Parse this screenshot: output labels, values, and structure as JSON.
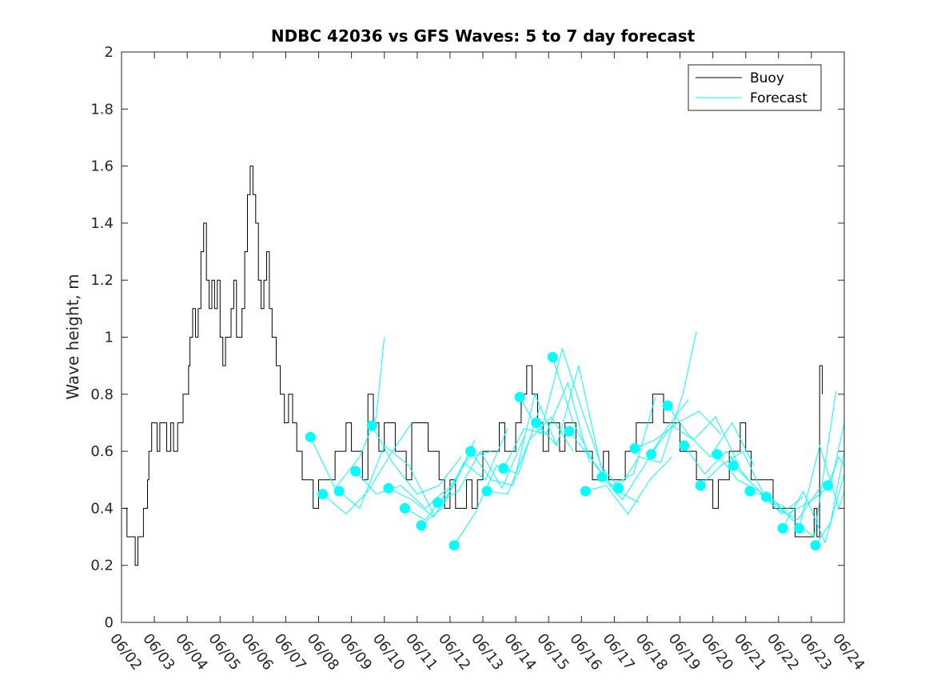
{
  "chart_data": {
    "type": "line",
    "title": "NDBC 42036 vs GFS Waves: 5 to 7 day forecast",
    "ylabel": "Wave height, m",
    "xlabel": "",
    "x_start": "06/02",
    "x_ticks": [
      "06/02",
      "06/03",
      "06/04",
      "06/05",
      "06/06",
      "06/07",
      "06/08",
      "06/09",
      "06/10",
      "06/11",
      "06/12",
      "06/13",
      "06/14",
      "06/15",
      "06/16",
      "06/17",
      "06/18",
      "06/19",
      "06/20",
      "06/21",
      "06/22",
      "06/23",
      "06/24"
    ],
    "xlim": [
      "06/02",
      "06/24"
    ],
    "ylim": [
      0,
      2
    ],
    "y_ticks": [
      "0",
      "0.2",
      "0.4",
      "0.6",
      "0.8",
      "1",
      "1.2",
      "1.4",
      "1.6",
      "1.8",
      "2"
    ],
    "legend": {
      "position": "top-right",
      "entries": [
        "Buoy",
        "Forecast"
      ]
    },
    "colors": {
      "buoy": "#000000",
      "forecast": "#00ffff",
      "axes": "#262626"
    },
    "series": [
      {
        "name": "Buoy",
        "x": [
          "06/02 02:00",
          "06/02 04:00",
          "06/02 07:00",
          "06/02 09:00",
          "06/02 10:00",
          "06/02 11:00",
          "06/02 12:00",
          "06/02 14:00",
          "06/02 16:00",
          "06/02 17:00",
          "06/02 19:00",
          "06/02 20:00",
          "06/02 22:00",
          "06/03 01:00",
          "06/03 02:00",
          "06/03 04:00",
          "06/03 07:00",
          "06/03 09:00",
          "06/03 12:00",
          "06/03 14:00",
          "06/03 17:00",
          "06/03 19:00",
          "06/03 21:00",
          "06/03 23:00",
          "06/04 01:00",
          "06/04 02:00",
          "06/04 04:00",
          "06/04 06:00",
          "06/04 08:00",
          "06/04 10:00",
          "06/04 12:00",
          "06/04 14:00",
          "06/04 16:00",
          "06/04 18:00",
          "06/04 20:00",
          "06/04 22:00",
          "06/05 00:00",
          "06/05 02:00",
          "06/05 04:00",
          "06/05 06:00",
          "06/05 08:00",
          "06/05 10:00",
          "06/05 12:00",
          "06/05 14:00",
          "06/05 16:00",
          "06/05 18:00",
          "06/05 20:00",
          "06/05 22:00",
          "06/06 00:00",
          "06/06 02:00",
          "06/06 04:00",
          "06/06 06:00",
          "06/06 08:00",
          "06/06 10:00",
          "06/06 12:00",
          "06/06 14:00",
          "06/06 17:00",
          "06/06 20:00",
          "06/06 23:00",
          "06/07 02:00",
          "06/07 05:00",
          "06/07 08:00",
          "06/07 12:00",
          "06/07 16:00",
          "06/07 20:00",
          "06/08 00:00",
          "06/08 04:00",
          "06/08 08:00",
          "06/08 12:00",
          "06/08 16:00",
          "06/08 20:00",
          "06/09 00:00",
          "06/09 04:00",
          "06/09 08:00",
          "06/09 12:00",
          "06/09 16:00",
          "06/09 20:00",
          "06/10 00:00",
          "06/10 04:00",
          "06/10 08:00",
          "06/10 12:00",
          "06/10 16:00",
          "06/10 20:00",
          "06/11 00:00",
          "06/11 04:00",
          "06/11 08:00",
          "06/11 12:00",
          "06/11 16:00",
          "06/11 20:00",
          "06/12 00:00",
          "06/12 04:00",
          "06/12 08:00",
          "06/12 12:00",
          "06/12 16:00",
          "06/12 20:00",
          "06/13 00:00",
          "06/13 04:00",
          "06/13 08:00",
          "06/13 12:00",
          "06/13 16:00",
          "06/13 20:00",
          "06/14 00:00",
          "06/14 04:00",
          "06/14 08:00",
          "06/14 12:00",
          "06/14 16:00",
          "06/14 20:00",
          "06/15 00:00",
          "06/15 04:00",
          "06/15 08:00",
          "06/15 12:00",
          "06/15 16:00",
          "06/15 20:00",
          "06/16 00:00",
          "06/16 04:00",
          "06/16 08:00",
          "06/16 12:00",
          "06/16 16:00",
          "06/16 20:00",
          "06/17 00:00",
          "06/17 04:00",
          "06/17 08:00",
          "06/17 12:00",
          "06/17 16:00",
          "06/17 20:00",
          "06/18 00:00",
          "06/18 04:00",
          "06/18 08:00",
          "06/18 12:00",
          "06/18 16:00",
          "06/18 20:00",
          "06/19 00:00",
          "06/19 04:00",
          "06/19 08:00",
          "06/19 12:00",
          "06/19 16:00",
          "06/19 20:00",
          "06/20 00:00",
          "06/20 04:00",
          "06/20 08:00",
          "06/20 12:00",
          "06/20 16:00",
          "06/20 20:00",
          "06/21 00:00",
          "06/21 04:00",
          "06/21 08:00",
          "06/21 12:00",
          "06/21 16:00",
          "06/21 20:00",
          "06/22 00:00",
          "06/22 04:00",
          "06/22 08:00",
          "06/22 12:00",
          "06/22 16:00",
          "06/22 20:00",
          "06/23 00:00",
          "06/23 02:00",
          "06/23 04:00",
          "06/23 06:00",
          "06/23 08:00"
        ],
        "y": [
          0.4,
          0.3,
          0.3,
          0.3,
          0.2,
          0.2,
          0.3,
          0.3,
          0.4,
          0.4,
          0.5,
          0.6,
          0.7,
          0.7,
          0.6,
          0.7,
          0.7,
          0.6,
          0.7,
          0.6,
          0.7,
          0.7,
          0.8,
          0.8,
          0.9,
          1.0,
          1.1,
          1.0,
          1.1,
          1.3,
          1.4,
          1.2,
          1.1,
          1.2,
          1.1,
          1.2,
          1.0,
          0.9,
          1.0,
          1.0,
          1.1,
          1.2,
          1.0,
          1.0,
          1.1,
          1.3,
          1.5,
          1.6,
          1.5,
          1.4,
          1.2,
          1.1,
          1.2,
          1.3,
          1.1,
          1.0,
          0.9,
          0.8,
          0.7,
          0.8,
          0.7,
          0.6,
          0.5,
          0.5,
          0.4,
          0.5,
          0.5,
          0.5,
          0.6,
          0.6,
          0.7,
          0.6,
          0.6,
          0.5,
          0.8,
          0.7,
          0.6,
          0.7,
          0.7,
          0.6,
          0.6,
          0.5,
          0.7,
          0.7,
          0.7,
          0.6,
          0.6,
          0.5,
          0.4,
          0.5,
          0.4,
          0.4,
          0.5,
          0.4,
          0.5,
          0.6,
          0.6,
          0.6,
          0.7,
          0.6,
          0.6,
          0.7,
          0.8,
          0.9,
          0.8,
          0.7,
          0.6,
          0.7,
          0.7,
          0.6,
          0.7,
          0.7,
          0.6,
          0.6,
          0.6,
          0.5,
          0.5,
          0.6,
          0.5,
          0.5,
          0.5,
          0.6,
          0.6,
          0.7,
          0.7,
          0.7,
          0.8,
          0.8,
          0.7,
          0.7,
          0.7,
          0.6,
          0.6,
          0.6,
          0.5,
          0.5,
          0.5,
          0.4,
          0.5,
          0.5,
          0.6,
          0.6,
          0.7,
          0.6,
          0.5,
          0.5,
          0.5,
          0.5,
          0.4,
          0.4,
          0.4,
          0.4,
          0.3,
          0.3,
          0.3,
          0.3,
          0.4,
          0.3,
          0.9,
          0.8
        ]
      },
      {
        "name": "Forecast",
        "markers": {
          "x": [
            "06/07 18:00",
            "06/08 03:00",
            "06/08 15:00",
            "06/09 03:00",
            "06/09 15:00",
            "06/10 03:00",
            "06/10 15:00",
            "06/11 03:00",
            "06/11 15:00",
            "06/12 03:00",
            "06/12 15:00",
            "06/13 03:00",
            "06/13 15:00",
            "06/14 03:00",
            "06/14 15:00",
            "06/15 03:00",
            "06/15 15:00",
            "06/16 03:00",
            "06/16 15:00",
            "06/17 03:00",
            "06/17 15:00",
            "06/18 03:00",
            "06/18 15:00",
            "06/19 03:00",
            "06/19 15:00",
            "06/20 03:00",
            "06/20 15:00",
            "06/21 03:00",
            "06/21 15:00",
            "06/22 03:00",
            "06/22 15:00",
            "06/23 03:00",
            "06/23 12:00"
          ],
          "y": [
            0.65,
            0.45,
            0.46,
            0.53,
            0.69,
            0.47,
            0.4,
            0.34,
            0.42,
            0.27,
            0.6,
            0.46,
            0.54,
            0.79,
            0.7,
            0.93,
            0.67,
            0.46,
            0.51,
            0.47,
            0.61,
            0.59,
            0.76,
            0.62,
            0.48,
            0.59,
            0.55,
            0.46,
            0.44,
            0.33,
            0.33,
            0.27,
            0.48
          ]
        },
        "runs": [
          {
            "x": [
              "06/07 18:00",
              "06/08 12:00",
              "06/09 06:00",
              "06/09 18:00",
              "06/10 00:00"
            ],
            "y": [
              0.65,
              0.47,
              0.58,
              0.72,
              1.0
            ]
          },
          {
            "x": [
              "06/08 03:00",
              "06/08 20:00",
              "06/09 12:00",
              "06/10 06:00",
              "06/10 20:00"
            ],
            "y": [
              0.45,
              0.38,
              0.46,
              0.6,
              0.7
            ]
          },
          {
            "x": [
              "06/08 15:00",
              "06/09 06:00",
              "06/10 00:00",
              "06/10 18:00",
              "06/11 12:00"
            ],
            "y": [
              0.46,
              0.4,
              0.62,
              0.55,
              0.38
            ]
          },
          {
            "x": [
              "06/09 03:00",
              "06/09 18:00",
              "06/10 12:00",
              "06/11 06:00",
              "06/11 22:00"
            ],
            "y": [
              0.53,
              0.45,
              0.48,
              0.4,
              0.47
            ]
          },
          {
            "x": [
              "06/09 15:00",
              "06/10 06:00",
              "06/11 00:00",
              "06/11 16:00",
              "06/12 08:00"
            ],
            "y": [
              0.69,
              0.56,
              0.45,
              0.48,
              0.58
            ]
          },
          {
            "x": [
              "06/10 03:00",
              "06/10 20:00",
              "06/11 12:00",
              "06/12 04:00",
              "06/12 18:00"
            ],
            "y": [
              0.47,
              0.43,
              0.37,
              0.49,
              0.64
            ]
          },
          {
            "x": [
              "06/10 15:00",
              "06/11 06:00",
              "06/11 22:00",
              "06/12 14:00",
              "06/13 06:00"
            ],
            "y": [
              0.4,
              0.36,
              0.46,
              0.58,
              0.6
            ]
          },
          {
            "x": [
              "06/11 03:00",
              "06/11 18:00",
              "06/12 10:00",
              "06/13 02:00",
              "06/13 18:00"
            ],
            "y": [
              0.34,
              0.4,
              0.56,
              0.5,
              0.68
            ]
          },
          {
            "x": [
              "06/11 15:00",
              "06/12 06:00",
              "06/12 22:00",
              "06/13 14:00",
              "06/14 06:00"
            ],
            "y": [
              0.42,
              0.46,
              0.6,
              0.47,
              0.65
            ]
          },
          {
            "x": [
              "06/12 03:00",
              "06/12 18:00",
              "06/13 10:00",
              "06/14 02:00",
              "06/14 18:00"
            ],
            "y": [
              0.27,
              0.38,
              0.55,
              0.52,
              0.76
            ]
          },
          {
            "x": [
              "06/12 15:00",
              "06/13 06:00",
              "06/13 22:00",
              "06/14 14:00",
              "06/15 06:00"
            ],
            "y": [
              0.6,
              0.5,
              0.48,
              0.8,
              0.62
            ]
          },
          {
            "x": [
              "06/13 03:00",
              "06/13 18:00",
              "06/14 10:00",
              "06/15 02:00",
              "06/15 18:00"
            ],
            "y": [
              0.46,
              0.45,
              0.64,
              0.72,
              0.6
            ]
          },
          {
            "x": [
              "06/13 15:00",
              "06/14 06:00",
              "06/14 22:00",
              "06/15 14:00",
              "06/16 06:00"
            ],
            "y": [
              0.54,
              0.68,
              0.66,
              0.84,
              0.56
            ]
          },
          {
            "x": [
              "06/14 03:00",
              "06/14 18:00",
              "06/15 10:00",
              "06/16 02:00",
              "06/16 18:00"
            ],
            "y": [
              0.79,
              0.66,
              0.96,
              0.72,
              0.5
            ]
          },
          {
            "x": [
              "06/14 15:00",
              "06/15 06:00",
              "06/15 22:00",
              "06/16 14:00",
              "06/17 06:00"
            ],
            "y": [
              0.7,
              0.62,
              0.9,
              0.55,
              0.46
            ]
          },
          {
            "x": [
              "06/15 03:00",
              "06/15 18:00",
              "06/16 10:00",
              "06/17 02:00",
              "06/17 18:00"
            ],
            "y": [
              0.93,
              0.7,
              0.55,
              0.46,
              0.42
            ]
          },
          {
            "x": [
              "06/15 15:00",
              "06/16 06:00",
              "06/16 22:00",
              "06/17 14:00",
              "06/18 06:00"
            ],
            "y": [
              0.67,
              0.58,
              0.48,
              0.52,
              0.79
            ]
          },
          {
            "x": [
              "06/16 03:00",
              "06/16 18:00",
              "06/17 10:00",
              "06/18 02:00",
              "06/18 18:00"
            ],
            "y": [
              0.46,
              0.48,
              0.38,
              0.5,
              0.58
            ]
          },
          {
            "x": [
              "06/16 15:00",
              "06/17 06:00",
              "06/17 22:00",
              "06/18 14:00",
              "06/19 06:00"
            ],
            "y": [
              0.51,
              0.43,
              0.55,
              0.68,
              0.78
            ]
          },
          {
            "x": [
              "06/17 03:00",
              "06/17 18:00",
              "06/18 10:00",
              "06/19 02:00",
              "06/19 12:00"
            ],
            "y": [
              0.47,
              0.58,
              0.56,
              0.8,
              1.02
            ]
          },
          {
            "x": [
              "06/17 15:00",
              "06/18 06:00",
              "06/18 22:00",
              "06/19 14:00",
              "06/20 06:00"
            ],
            "y": [
              0.61,
              0.64,
              0.7,
              0.74,
              0.66
            ]
          },
          {
            "x": [
              "06/18 03:00",
              "06/18 18:00",
              "06/19 10:00",
              "06/20 02:00",
              "06/20 18:00"
            ],
            "y": [
              0.59,
              0.69,
              0.64,
              0.72,
              0.56
            ]
          },
          {
            "x": [
              "06/18 15:00",
              "06/19 06:00",
              "06/19 22:00",
              "06/20 14:00",
              "06/21 06:00"
            ],
            "y": [
              0.76,
              0.66,
              0.58,
              0.7,
              0.55
            ]
          },
          {
            "x": [
              "06/19 03:00",
              "06/19 18:00",
              "06/20 10:00",
              "06/21 02:00",
              "06/21 18:00"
            ],
            "y": [
              0.62,
              0.52,
              0.6,
              0.5,
              0.42
            ]
          },
          {
            "x": [
              "06/19 15:00",
              "06/20 06:00",
              "06/20 22:00",
              "06/21 14:00",
              "06/22 06:00"
            ],
            "y": [
              0.48,
              0.55,
              0.6,
              0.44,
              0.4
            ]
          },
          {
            "x": [
              "06/20 03:00",
              "06/20 18:00",
              "06/21 10:00",
              "06/22 02:00",
              "06/22 18:00"
            ],
            "y": [
              0.59,
              0.5,
              0.46,
              0.38,
              0.44
            ]
          },
          {
            "x": [
              "06/20 15:00",
              "06/21 06:00",
              "06/21 22:00",
              "06/22 14:00",
              "06/23 06:00"
            ],
            "y": [
              0.55,
              0.48,
              0.4,
              0.36,
              0.47
            ]
          },
          {
            "x": [
              "06/21 03:00",
              "06/21 18:00",
              "06/22 10:00",
              "06/23 02:00",
              "06/23 18:00"
            ],
            "y": [
              0.46,
              0.44,
              0.36,
              0.3,
              0.81
            ]
          },
          {
            "x": [
              "06/21 15:00",
              "06/22 06:00",
              "06/22 22:00",
              "06/23 14:00",
              "06/24 00:00"
            ],
            "y": [
              0.44,
              0.38,
              0.42,
              0.48,
              0.7
            ]
          },
          {
            "x": [
              "06/22 03:00",
              "06/22 18:00",
              "06/23 10:00",
              "06/24 00:00"
            ],
            "y": [
              0.33,
              0.46,
              0.28,
              0.52
            ]
          },
          {
            "x": [
              "06/22 15:00",
              "06/23 06:00",
              "06/23 20:00",
              "06/24 00:00"
            ],
            "y": [
              0.33,
              0.62,
              0.4,
              0.46
            ]
          },
          {
            "x": [
              "06/23 03:00",
              "06/23 14:00",
              "06/24 00:00"
            ],
            "y": [
              0.27,
              0.35,
              0.6
            ]
          },
          {
            "x": [
              "06/23 12:00",
              "06/23 20:00",
              "06/24 00:00"
            ],
            "y": [
              0.48,
              0.58,
              0.55
            ]
          }
        ]
      }
    ]
  }
}
